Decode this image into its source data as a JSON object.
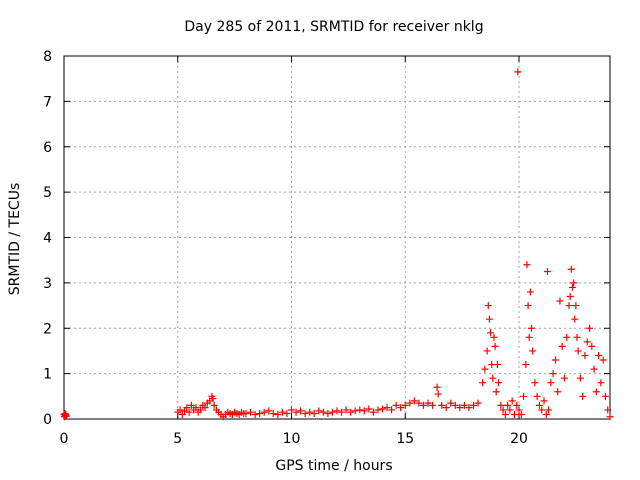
{
  "chart_data": {
    "type": "scatter",
    "title": "Day 285 of 2011, SRMTID for receiver nklg",
    "xlabel": "GPS time / hours",
    "ylabel": "SRMTID / TECUs",
    "xlim": [
      0,
      24
    ],
    "ylim": [
      0,
      8
    ],
    "grid": true,
    "x_ticks": [
      0,
      5,
      10,
      15,
      20
    ],
    "y_ticks": [
      0,
      1,
      2,
      3,
      4,
      5,
      6,
      7,
      8
    ],
    "marker": "plus",
    "color": "#ff0000",
    "series": [
      {
        "name": "SRMTID",
        "x": [
          0.0,
          0.02,
          0.04,
          0.06,
          0.08,
          0.1,
          5.0,
          5.1,
          5.2,
          5.3,
          5.4,
          5.5,
          5.6,
          5.7,
          5.8,
          5.9,
          6.0,
          6.1,
          6.2,
          6.3,
          6.4,
          6.5,
          6.55,
          6.6,
          6.7,
          6.8,
          6.9,
          7.0,
          7.1,
          7.2,
          7.3,
          7.4,
          7.5,
          7.6,
          7.7,
          7.8,
          7.9,
          8.0,
          8.2,
          8.4,
          8.6,
          8.8,
          9.0,
          9.2,
          9.4,
          9.6,
          9.8,
          10.0,
          10.2,
          10.4,
          10.6,
          10.8,
          11.0,
          11.2,
          11.4,
          11.6,
          11.8,
          12.0,
          12.2,
          12.4,
          12.6,
          12.8,
          13.0,
          13.2,
          13.4,
          13.6,
          13.8,
          14.0,
          14.2,
          14.4,
          14.6,
          14.8,
          15.0,
          15.2,
          15.4,
          15.6,
          15.8,
          16.0,
          16.2,
          16.4,
          16.45,
          16.6,
          16.8,
          17.0,
          17.2,
          17.4,
          17.6,
          17.8,
          18.0,
          18.2,
          18.4,
          18.5,
          18.6,
          18.65,
          18.7,
          18.75,
          18.8,
          18.85,
          18.9,
          18.95,
          19.0,
          19.05,
          19.1,
          19.2,
          19.3,
          19.4,
          19.5,
          19.6,
          19.7,
          19.8,
          19.9,
          19.95,
          20.0,
          20.1,
          20.2,
          20.3,
          20.35,
          20.4,
          20.45,
          20.5,
          20.55,
          20.6,
          20.7,
          20.8,
          20.9,
          21.0,
          21.1,
          21.2,
          21.25,
          21.3,
          21.4,
          21.5,
          21.6,
          21.7,
          21.8,
          21.9,
          22.0,
          22.1,
          22.2,
          22.25,
          22.3,
          22.35,
          22.4,
          22.45,
          22.5,
          22.55,
          22.6,
          22.7,
          22.8,
          22.9,
          23.0,
          23.1,
          23.2,
          23.3,
          23.4,
          23.5,
          23.6,
          23.7,
          23.8,
          23.9,
          24.0
        ],
        "y": [
          0.1,
          0.05,
          0.12,
          0.08,
          0.1,
          0.06,
          0.15,
          0.2,
          0.1,
          0.18,
          0.25,
          0.15,
          0.3,
          0.2,
          0.25,
          0.15,
          0.2,
          0.3,
          0.25,
          0.35,
          0.4,
          0.5,
          0.45,
          0.3,
          0.2,
          0.15,
          0.1,
          0.05,
          0.1,
          0.15,
          0.12,
          0.1,
          0.15,
          0.12,
          0.1,
          0.15,
          0.12,
          0.12,
          0.15,
          0.1,
          0.12,
          0.15,
          0.18,
          0.12,
          0.1,
          0.15,
          0.12,
          0.2,
          0.15,
          0.18,
          0.12,
          0.15,
          0.12,
          0.18,
          0.15,
          0.12,
          0.15,
          0.18,
          0.15,
          0.2,
          0.15,
          0.18,
          0.2,
          0.18,
          0.22,
          0.15,
          0.2,
          0.22,
          0.25,
          0.2,
          0.3,
          0.25,
          0.3,
          0.35,
          0.4,
          0.35,
          0.3,
          0.35,
          0.3,
          0.7,
          0.55,
          0.3,
          0.25,
          0.35,
          0.3,
          0.25,
          0.3,
          0.25,
          0.3,
          0.35,
          0.8,
          1.1,
          1.5,
          2.5,
          2.2,
          1.9,
          1.2,
          0.9,
          1.8,
          1.6,
          0.6,
          1.2,
          0.8,
          0.3,
          0.2,
          0.1,
          0.3,
          0.2,
          0.4,
          0.1,
          0.3,
          7.65,
          0.2,
          0.1,
          0.5,
          1.2,
          3.4,
          2.5,
          1.8,
          2.8,
          2.0,
          1.5,
          0.8,
          0.5,
          0.3,
          0.2,
          0.4,
          0.1,
          3.25,
          0.2,
          0.8,
          1.0,
          1.3,
          0.6,
          2.6,
          1.6,
          0.9,
          1.8,
          2.5,
          2.7,
          3.3,
          2.9,
          3.0,
          2.2,
          2.5,
          1.8,
          1.5,
          0.9,
          0.5,
          1.4,
          1.7,
          2.0,
          1.6,
          1.1,
          0.6,
          1.4,
          0.8,
          1.3,
          0.5,
          0.2,
          0.05
        ]
      }
    ]
  }
}
